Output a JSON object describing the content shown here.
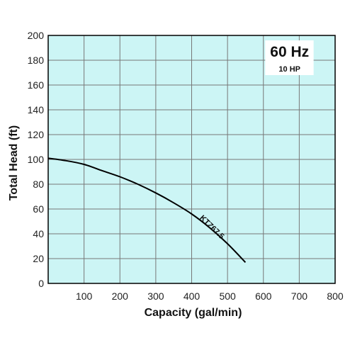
{
  "colors": {
    "plot_background": "#ccf5f5",
    "grid": "#777777",
    "frame": "#000000",
    "curve": "#000000",
    "badge_background": "#ffffff"
  },
  "chart_data": {
    "type": "line",
    "title": "",
    "xlabel": "Capacity (gal/min)",
    "ylabel": "Total Head (ft)",
    "xlim": [
      0,
      800
    ],
    "ylim": [
      0,
      200
    ],
    "xticks": [
      100,
      200,
      300,
      400,
      500,
      600,
      700,
      800
    ],
    "yticks": [
      0,
      20,
      40,
      60,
      80,
      100,
      120,
      140,
      160,
      180,
      200
    ],
    "grid": true,
    "badge": {
      "frequency": "60 Hz",
      "power": "10 HP"
    },
    "series": [
      {
        "name": "KTZ67.5",
        "x": [
          0,
          50,
          100,
          150,
          200,
          250,
          300,
          350,
          400,
          450,
          500,
          550
        ],
        "y": [
          101,
          99,
          96,
          91,
          86,
          80,
          73,
          65,
          56,
          45,
          32,
          17
        ]
      }
    ]
  }
}
